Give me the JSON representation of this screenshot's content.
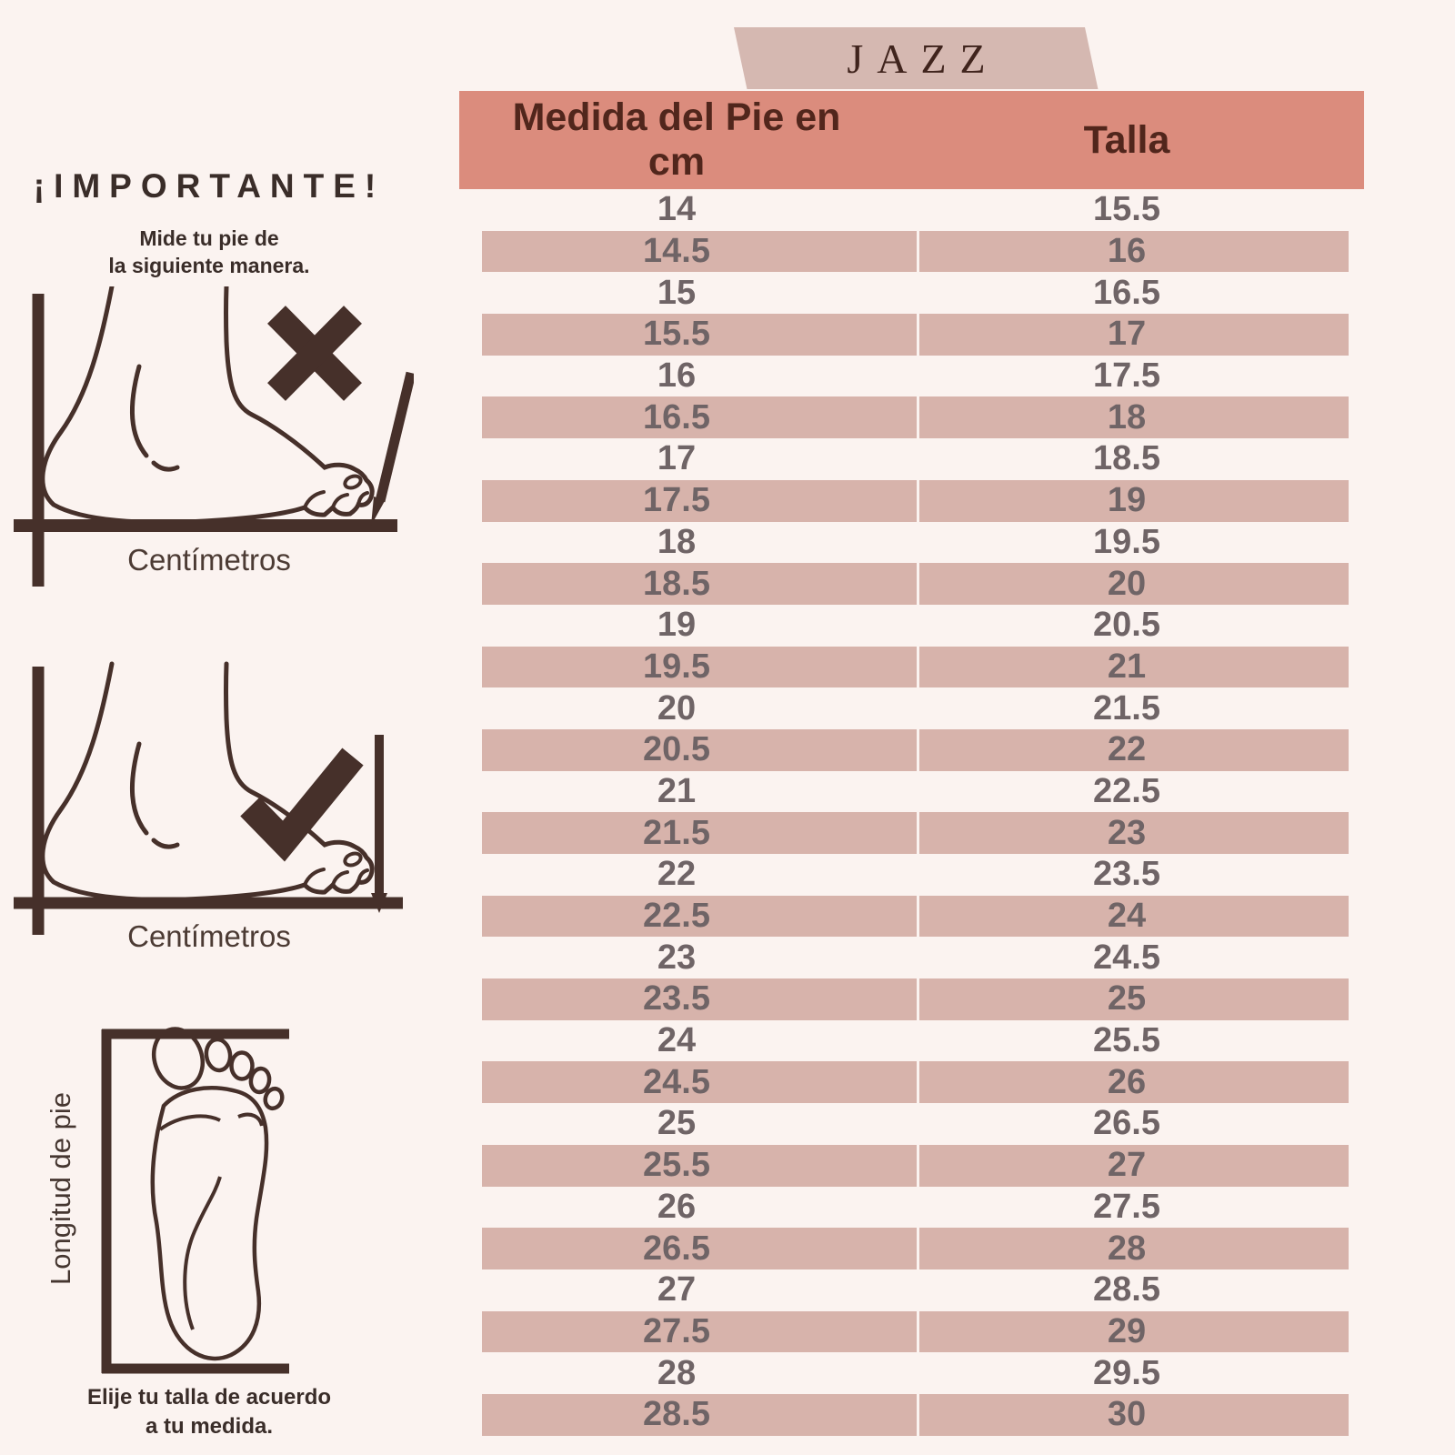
{
  "page": {
    "background_color": "#fbf3f0",
    "accent_color": "#db8c7d",
    "stripe_color": "#d7b3ab",
    "tab_color": "#d5b8b1",
    "line_art_color": "#46302a"
  },
  "brand_tab": {
    "label": "JAZZ"
  },
  "size_table": {
    "header": {
      "foot_col": "Medida del Pie en cm",
      "size_col": "Talla"
    },
    "rows": [
      [
        "14",
        "15.5"
      ],
      [
        "14.5",
        "16"
      ],
      [
        "15",
        "16.5"
      ],
      [
        "15.5",
        "17"
      ],
      [
        "16",
        "17.5"
      ],
      [
        "16.5",
        "18"
      ],
      [
        "17",
        "18.5"
      ],
      [
        "17.5",
        "19"
      ],
      [
        "18",
        "19.5"
      ],
      [
        "18.5",
        "20"
      ],
      [
        "19",
        "20.5"
      ],
      [
        "19.5",
        "21"
      ],
      [
        "20",
        "21.5"
      ],
      [
        "20.5",
        "22"
      ],
      [
        "21",
        "22.5"
      ],
      [
        "21.5",
        "23"
      ],
      [
        "22",
        "23.5"
      ],
      [
        "22.5",
        "24"
      ],
      [
        "23",
        "24.5"
      ],
      [
        "23.5",
        "25"
      ],
      [
        "24",
        "25.5"
      ],
      [
        "24.5",
        "26"
      ],
      [
        "25",
        "26.5"
      ],
      [
        "25.5",
        "27"
      ],
      [
        "26",
        "27.5"
      ],
      [
        "26.5",
        "28"
      ],
      [
        "27",
        "28.5"
      ],
      [
        "27.5",
        "29"
      ],
      [
        "28",
        "29.5"
      ],
      [
        "28.5",
        "30"
      ]
    ]
  },
  "instructions": {
    "heading": "¡IMPORTANTE!",
    "subheading": "Mide tu pie de\nla siguiente manera.",
    "wrong_caption": "Centímetros",
    "right_caption": "Centímetros",
    "wrong_icon": "x-mark",
    "right_icon": "check-mark",
    "foot_length_label": "Longitud de pie",
    "footer_note": "Elije tu talla de acuerdo\na  tu medida."
  }
}
